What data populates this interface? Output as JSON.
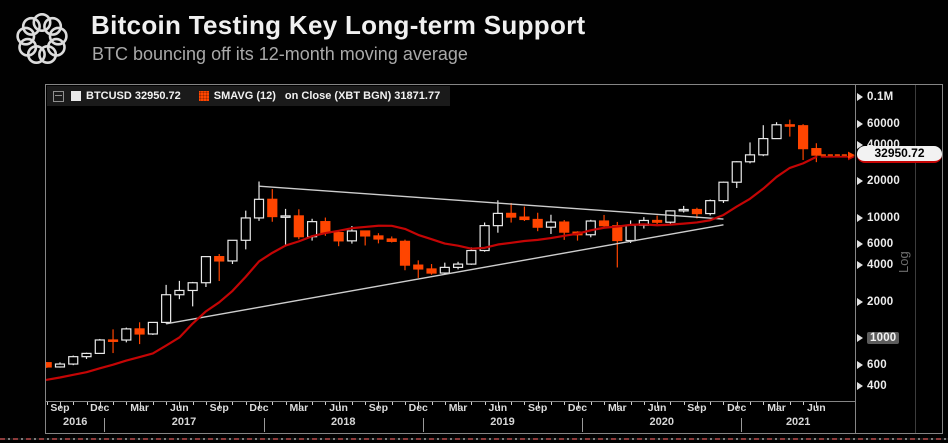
{
  "header": {
    "title": "Bitcoin Testing Key Long-term Support",
    "subtitle": "BTC bouncing off its 12-month moving average",
    "logo": "circle-wreath-logo"
  },
  "legend": {
    "tree_icon": "collapse-box",
    "btc_swatch_color": "#e9e9e9",
    "btc_label": "BTCUSD 32950.72",
    "sma_swatch_color": "#ff4500",
    "sma_label": "SMAVG (12)",
    "sma_detail": "on Close (XBT BGN) 31871.77"
  },
  "chart_data": {
    "type": "candlestick",
    "symbol": "BTCUSD",
    "last_price": 32950.72,
    "last_price_label": "32950.72",
    "sma_series_name": "SMAVG (12) on Close (XBT BGN)",
    "sma_last": 31871.77,
    "colors": {
      "up_candle": "#e9e9e9",
      "down_candle": "#ff4500",
      "sma_line": "#c40505",
      "trendline": "#cdcdcd"
    },
    "y_axis": {
      "scale": "log",
      "scale_label": "Log",
      "side": "right",
      "ticks": [
        {
          "label": "0.1M",
          "value": 100000,
          "highlight": false
        },
        {
          "label": "60000",
          "value": 60000,
          "highlight": false
        },
        {
          "label": "40000",
          "value": 40000,
          "highlight": false
        },
        {
          "label": "20000",
          "value": 20000,
          "highlight": false
        },
        {
          "label": "10000",
          "value": 10000,
          "highlight": false
        },
        {
          "label": "6000",
          "value": 6000,
          "highlight": false
        },
        {
          "label": "4000",
          "value": 4000,
          "highlight": false
        },
        {
          "label": "2000",
          "value": 2000,
          "highlight": false
        },
        {
          "label": "1000",
          "value": 1000,
          "highlight": true
        },
        {
          "label": "600",
          "value": 600,
          "highlight": false
        },
        {
          "label": "400",
          "value": 400,
          "highlight": false
        }
      ]
    },
    "x_axis": {
      "month_labels": [
        {
          "i": 1,
          "label": "Sep"
        },
        {
          "i": 4,
          "label": "Dec"
        },
        {
          "i": 7,
          "label": "Mar"
        },
        {
          "i": 10,
          "label": "Jun"
        },
        {
          "i": 13,
          "label": "Sep"
        },
        {
          "i": 16,
          "label": "Dec"
        },
        {
          "i": 19,
          "label": "Mar"
        },
        {
          "i": 22,
          "label": "Jun"
        },
        {
          "i": 25,
          "label": "Sep"
        },
        {
          "i": 28,
          "label": "Dec"
        },
        {
          "i": 31,
          "label": "Mar"
        },
        {
          "i": 34,
          "label": "Jun"
        },
        {
          "i": 37,
          "label": "Sep"
        },
        {
          "i": 40,
          "label": "Dec"
        },
        {
          "i": 43,
          "label": "Mar"
        },
        {
          "i": 46,
          "label": "Jun"
        },
        {
          "i": 49,
          "label": "Sep"
        },
        {
          "i": 52,
          "label": "Dec"
        },
        {
          "i": 55,
          "label": "Mar"
        },
        {
          "i": 58,
          "label": "Jun"
        }
      ],
      "years": [
        {
          "label": "2016",
          "from": -0.4,
          "to": 4.35
        },
        {
          "label": "2017",
          "from": 4.35,
          "to": 16.35
        },
        {
          "label": "2018",
          "from": 16.35,
          "to": 28.35
        },
        {
          "label": "2019",
          "from": 28.35,
          "to": 40.35
        },
        {
          "label": "2020",
          "from": 40.35,
          "to": 52.35
        },
        {
          "label": "2021",
          "from": 52.35,
          "to": 61.5
        }
      ]
    },
    "candle_format": [
      "month",
      "open",
      "high",
      "low",
      "close"
    ],
    "candles": [
      [
        "Aug 2016",
        624,
        630,
        565,
        575
      ],
      [
        "Sep 2016",
        575,
        628,
        568,
        608
      ],
      [
        "Oct 2016",
        608,
        715,
        595,
        700
      ],
      [
        "Nov 2016",
        700,
        755,
        670,
        745
      ],
      [
        "Dec 2016",
        745,
        982,
        740,
        963
      ],
      [
        "Jan 2017",
        963,
        1180,
        750,
        962
      ],
      [
        "Feb 2017",
        962,
        1220,
        920,
        1190
      ],
      [
        "Mar 2017",
        1190,
        1350,
        890,
        1080
      ],
      [
        "Apr 2017",
        1080,
        1340,
        1060,
        1347
      ],
      [
        "May 2017",
        1347,
        2760,
        1320,
        2286
      ],
      [
        "Jun 2017",
        2286,
        2980,
        2100,
        2480
      ],
      [
        "Jul 2017",
        2480,
        2920,
        1830,
        2875
      ],
      [
        "Aug 2017",
        2875,
        4765,
        2650,
        4735
      ],
      [
        "Sep 2017",
        4735,
        4975,
        2970,
        4360
      ],
      [
        "Oct 2017",
        4360,
        6480,
        4110,
        6468
      ],
      [
        "Nov 2017",
        6468,
        11400,
        5440,
        9916
      ],
      [
        "Dec 2017",
        9916,
        19891,
        9380,
        14156
      ],
      [
        "Jan 2018",
        14156,
        17200,
        9220,
        10180
      ],
      [
        "Feb 2018",
        10180,
        11790,
        5920,
        10310
      ],
      [
        "Mar 2018",
        10310,
        11700,
        6600,
        6930
      ],
      [
        "Apr 2018",
        6930,
        9760,
        6430,
        9240
      ],
      [
        "May 2018",
        9240,
        9990,
        7040,
        7490
      ],
      [
        "Jun 2018",
        7490,
        7780,
        5780,
        6400
      ],
      [
        "Jul 2018",
        6400,
        8500,
        6070,
        7730
      ],
      [
        "Aug 2018",
        7730,
        7770,
        5860,
        7030
      ],
      [
        "Sep 2018",
        7030,
        7410,
        6100,
        6630
      ],
      [
        "Oct 2018",
        6630,
        6960,
        6200,
        6340
      ],
      [
        "Nov 2018",
        6340,
        6550,
        3650,
        4025
      ],
      [
        "Dec 2018",
        4025,
        4410,
        3150,
        3740
      ],
      [
        "Jan 2019",
        3740,
        4110,
        3350,
        3460
      ],
      [
        "Feb 2019",
        3460,
        4220,
        3360,
        3855
      ],
      [
        "Mar 2019",
        3855,
        4290,
        3710,
        4105
      ],
      [
        "Apr 2019",
        4105,
        5650,
        4050,
        5320
      ],
      [
        "May 2019",
        5320,
        9090,
        5200,
        8560
      ],
      [
        "Jun 2019",
        8560,
        13880,
        7480,
        10820
      ],
      [
        "Jul 2019",
        10820,
        13200,
        9080,
        10080
      ],
      [
        "Aug 2019",
        10080,
        12320,
        9350,
        9630
      ],
      [
        "Sep 2019",
        9630,
        10950,
        7700,
        8310
      ],
      [
        "Oct 2019",
        8310,
        10540,
        7300,
        9160
      ],
      [
        "Nov 2019",
        9160,
        9530,
        6520,
        7560
      ],
      [
        "Dec 2019",
        7560,
        7690,
        6430,
        7190
      ],
      [
        "Jan 2020",
        7190,
        9570,
        6850,
        9350
      ],
      [
        "Feb 2020",
        9350,
        10500,
        8400,
        8550
      ],
      [
        "Mar 2020",
        8550,
        9190,
        3850,
        6440
      ],
      [
        "Apr 2020",
        6440,
        9460,
        6150,
        8630
      ],
      [
        "May 2020",
        8630,
        10070,
        8100,
        9450
      ],
      [
        "Jun 2020",
        9450,
        10380,
        8830,
        9140
      ],
      [
        "Jul 2020",
        9140,
        11450,
        8900,
        11350
      ],
      [
        "Aug 2020",
        11350,
        12480,
        11000,
        11650
      ],
      [
        "Sep 2020",
        11650,
        12050,
        9820,
        10780
      ],
      [
        "Oct 2020",
        10780,
        14100,
        10390,
        13800
      ],
      [
        "Nov 2020",
        13800,
        19863,
        13200,
        19625
      ],
      [
        "Dec 2020",
        19625,
        29320,
        17580,
        29000
      ],
      [
        "Jan 2021",
        29000,
        41980,
        28150,
        33110
      ],
      [
        "Feb 2021",
        33110,
        58350,
        32300,
        45160
      ],
      [
        "Mar 2021",
        45160,
        61780,
        44950,
        58800
      ],
      [
        "Apr 2021",
        58800,
        64870,
        46930,
        57750
      ],
      [
        "May 2021",
        57750,
        59500,
        30000,
        37280
      ],
      [
        "Jun 2021",
        37280,
        41330,
        28800,
        32950.72
      ]
    ],
    "sma12": [
      450,
      470,
      495,
      520,
      560,
      600,
      650,
      695,
      745,
      865,
      1010,
      1318,
      1664,
      1977,
      2458,
      3222,
      4321,
      5089,
      5849,
      6337,
      6995,
      7428,
      7755,
      8160,
      8351,
      8540,
      8529,
      8038,
      7170,
      6610,
      6073,
      5837,
      5510,
      5600,
      5968,
      6164,
      6380,
      6520,
      6755,
      7050,
      7338,
      7828,
      8220,
      8414,
      8690,
      8764,
      8624,
      8730,
      8898,
      9104,
      9491,
      10496,
      12314,
      14294,
      17345,
      21708,
      25801,
      28120,
      31871.77
    ],
    "trendlines": [
      {
        "name": "descending-resistance",
        "from_i": 16,
        "from_price": 18200,
        "to_i": 51,
        "to_price": 9700
      },
      {
        "name": "ascending-support",
        "from_i": 9,
        "from_price": 1310,
        "to_i": 51,
        "to_price": 8700
      }
    ]
  }
}
